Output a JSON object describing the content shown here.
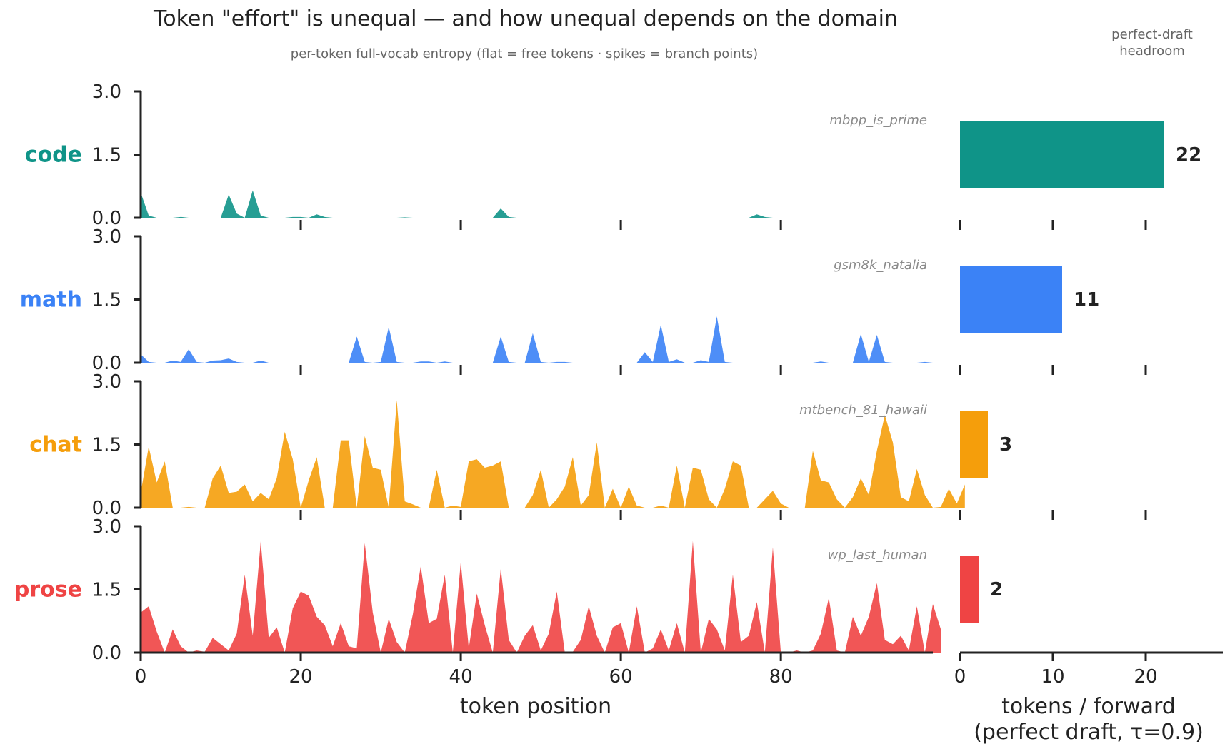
{
  "chart_data": {
    "type": "area",
    "title": "Token \"effort\" is unequal — and how unequal depends on the domain",
    "subtitle": "per-token full-vocab entropy   (flat = free tokens · spikes = branch points)",
    "xlabel": "token position",
    "ylim": [
      0,
      3.0
    ],
    "yticks": [
      "0.0",
      "1.5",
      "3.0"
    ],
    "xlim": [
      0,
      99
    ],
    "xticks": [
      "0",
      "20",
      "40",
      "60",
      "80"
    ],
    "series": [
      {
        "name": "code",
        "sample": "mbpp_is_prime",
        "color": "#0f9488",
        "headroom": 22,
        "values": [
          0.6,
          0.05,
          0,
          0,
          0,
          0.02,
          0,
          0,
          0,
          0,
          0,
          0.55,
          0.1,
          0,
          0.65,
          0.05,
          0,
          0,
          0,
          0.02,
          0.02,
          0,
          0.08,
          0.02,
          0,
          0,
          0,
          0,
          0,
          0,
          0,
          0,
          0,
          0.01,
          0,
          0,
          0,
          0,
          0,
          0,
          0,
          0,
          0,
          0,
          0,
          0.22,
          0.02,
          0,
          0,
          0,
          0,
          0,
          0,
          0,
          0,
          0,
          0,
          0,
          0,
          0,
          0,
          0,
          0,
          0,
          0,
          0,
          0,
          0,
          0,
          0,
          0,
          0,
          0,
          0,
          0,
          0,
          0,
          0.08,
          0.02,
          0,
          0,
          0,
          0,
          0,
          0,
          0,
          0,
          0,
          0,
          0,
          0,
          0,
          0,
          0,
          0,
          0,
          0,
          0,
          0,
          0
        ]
      },
      {
        "name": "math",
        "sample": "gsm8k_natalia",
        "color": "#3b82f6",
        "headroom": 11,
        "values": [
          0.2,
          0.02,
          0,
          0,
          0.05,
          0.02,
          0.32,
          0.02,
          0,
          0.05,
          0.06,
          0.1,
          0.02,
          0,
          0,
          0.05,
          0,
          0,
          0,
          0,
          0,
          0,
          0,
          0,
          0,
          0,
          0,
          0.62,
          0.02,
          0,
          0.02,
          0.85,
          0.02,
          0,
          0,
          0.03,
          0.03,
          0,
          0.03,
          0,
          0,
          0,
          0,
          0,
          0,
          0.62,
          0.02,
          0,
          0,
          0.7,
          0.02,
          0,
          0.02,
          0.02,
          0,
          0,
          0,
          0,
          0,
          0,
          0,
          0,
          0,
          0.25,
          0.02,
          0.9,
          0.02,
          0.08,
          0,
          0,
          0.06,
          0.02,
          1.1,
          0.02,
          0,
          0,
          0,
          0,
          0,
          0,
          0,
          0,
          0,
          0,
          0,
          0.03,
          0,
          0,
          0,
          0,
          0.68,
          0.02,
          0.66,
          0.02,
          0,
          0,
          0,
          0,
          0.02,
          0
        ]
      },
      {
        "name": "chat",
        "sample": "mtbench_81_hawaii",
        "color": "#f59e0b",
        "headroom": 3,
        "values": [
          0.35,
          1.45,
          0.6,
          1.1,
          0,
          0,
          0.02,
          0,
          0,
          0.7,
          1.0,
          0.35,
          0.38,
          0.55,
          0.15,
          0.35,
          0.2,
          0.7,
          1.8,
          1.15,
          0,
          0.65,
          1.2,
          0,
          0,
          1.6,
          1.6,
          0,
          1.7,
          0.95,
          0.9,
          0,
          2.55,
          0.15,
          0.08,
          0,
          0,
          0.9,
          0,
          0.05,
          0.02,
          1.1,
          1.15,
          0.95,
          1.0,
          1.1,
          0,
          0,
          0,
          0.3,
          0.9,
          0,
          0.2,
          0.5,
          1.2,
          0.05,
          0.3,
          1.55,
          0,
          0.45,
          0,
          0.5,
          0.05,
          0,
          0,
          0.05,
          0,
          1.0,
          0,
          0.95,
          0.9,
          0.2,
          0,
          0.45,
          1.1,
          1.0,
          0,
          0,
          0.2,
          0.4,
          0.1,
          0,
          0,
          0,
          1.35,
          0.65,
          0.6,
          0.2,
          0,
          0.25,
          0.7,
          0.3,
          1.35,
          2.2,
          1.55,
          0.25,
          0.15,
          0.92,
          0.3,
          0,
          0.02,
          0.45,
          0.1,
          0.55
        ]
      },
      {
        "name": "prose",
        "sample": "wp_last_human",
        "color": "#ef4444",
        "headroom": 2,
        "values": [
          0.95,
          1.1,
          0.5,
          0,
          0.55,
          0.15,
          0,
          0.05,
          0.02,
          0.35,
          0.2,
          0.05,
          0.45,
          1.85,
          0.4,
          2.65,
          0.35,
          0.6,
          0,
          1.05,
          1.45,
          1.35,
          0.85,
          0.65,
          0.15,
          0.7,
          0.15,
          0.1,
          2.6,
          0.95,
          0,
          0.8,
          0.25,
          0,
          0.9,
          2.05,
          0.7,
          0.8,
          1.85,
          0,
          2.15,
          0.1,
          1.4,
          0.65,
          0,
          2.0,
          0.3,
          0,
          0.4,
          0.65,
          0.05,
          0.45,
          1.45,
          0,
          0.02,
          0.3,
          1.1,
          0.4,
          0,
          0.6,
          0.7,
          0,
          1.1,
          0,
          0.1,
          0.55,
          0.05,
          0.7,
          0,
          2.65,
          0,
          0.8,
          0.55,
          0.05,
          1.85,
          0.25,
          0.4,
          1.2,
          0,
          2.5,
          0,
          0,
          0.05,
          0,
          0.05,
          0.45,
          1.3,
          0.05,
          0,
          0.85,
          0.4,
          0.85,
          1.65,
          0.3,
          0.2,
          0.4,
          0.05,
          1.1,
          0,
          1.15,
          0.55
        ]
      }
    ],
    "side_panel": {
      "header": [
        "perfect-draft",
        "headroom"
      ],
      "xlabel_lines": [
        "tokens / forward",
        "(perfect draft, τ=0.9)"
      ],
      "xlim": [
        0,
        28
      ],
      "xticks": [
        "0",
        "10",
        "20"
      ]
    }
  }
}
